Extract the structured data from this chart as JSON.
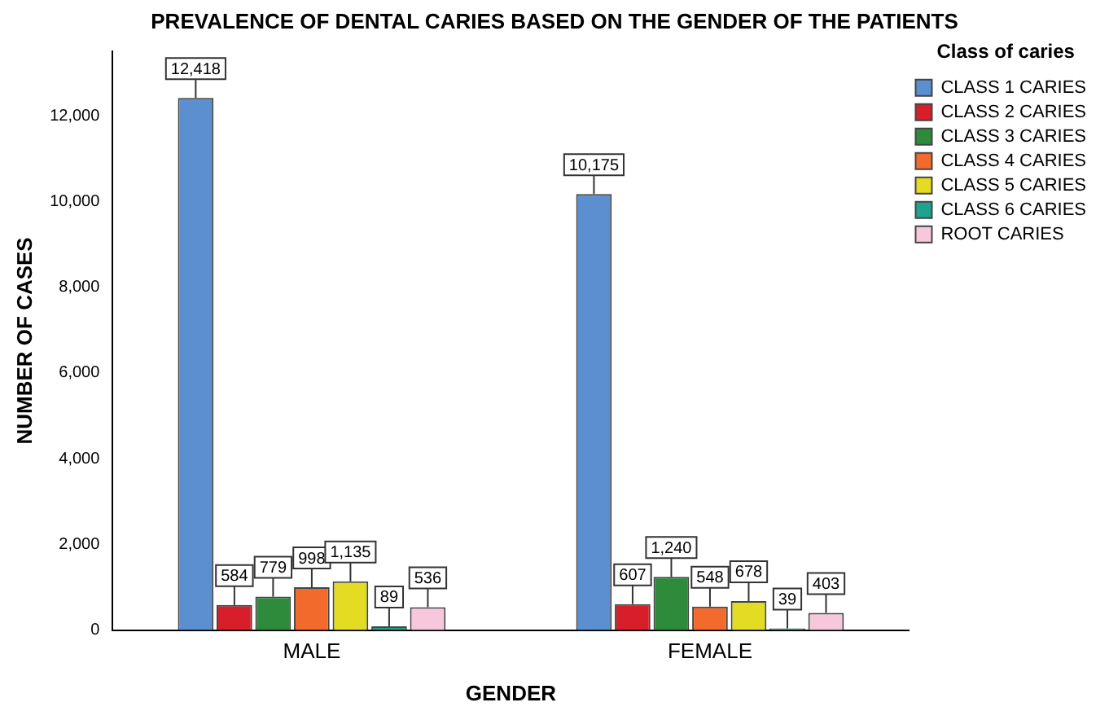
{
  "chart_data": {
    "type": "bar",
    "title": "PREVALENCE OF DENTAL CARIES BASED ON THE GENDER OF THE PATIENTS",
    "xlabel": "GENDER",
    "ylabel": "NUMBER OF CASES",
    "legend_title": "Class of caries",
    "categories": [
      "MALE",
      "FEMALE"
    ],
    "series": [
      {
        "name": "CLASS 1 CARIES",
        "color": "#5b8fd0",
        "values": [
          12418,
          10175
        ],
        "value_labels": [
          "12,418",
          "10,175"
        ]
      },
      {
        "name": "CLASS 2 CARIES",
        "color": "#d81e2a",
        "values": [
          584,
          607
        ],
        "value_labels": [
          "584",
          "607"
        ]
      },
      {
        "name": "CLASS 3 CARIES",
        "color": "#2e8b3c",
        "values": [
          779,
          1240
        ],
        "value_labels": [
          "779",
          "1,240"
        ]
      },
      {
        "name": "CLASS 4 CARIES",
        "color": "#f36b2c",
        "values": [
          998,
          548
        ],
        "value_labels": [
          "998",
          "548"
        ]
      },
      {
        "name": "CLASS 5 CARIES",
        "color": "#e3dc22",
        "values": [
          1135,
          678
        ],
        "value_labels": [
          "1,135",
          "678"
        ]
      },
      {
        "name": "CLASS 6 CARIES",
        "color": "#1fa391",
        "values": [
          89,
          39
        ],
        "value_labels": [
          "89",
          "39"
        ]
      },
      {
        "name": "ROOT CARIES",
        "color": "#f7c8dc",
        "values": [
          536,
          403
        ],
        "value_labels": [
          "536",
          "403"
        ]
      }
    ],
    "ylim": [
      0,
      13500
    ],
    "yticks": [
      0,
      {
        "value": 2000,
        "label": "2,000"
      },
      {
        "value": 4000,
        "label": "4,000"
      },
      {
        "value": 6000,
        "label": "6,000"
      },
      {
        "value": 8000,
        "label": "8,000"
      },
      {
        "value": 10000,
        "label": "10,000"
      },
      {
        "value": 12000,
        "label": "12,000"
      }
    ],
    "grid": false,
    "legend": "right"
  }
}
